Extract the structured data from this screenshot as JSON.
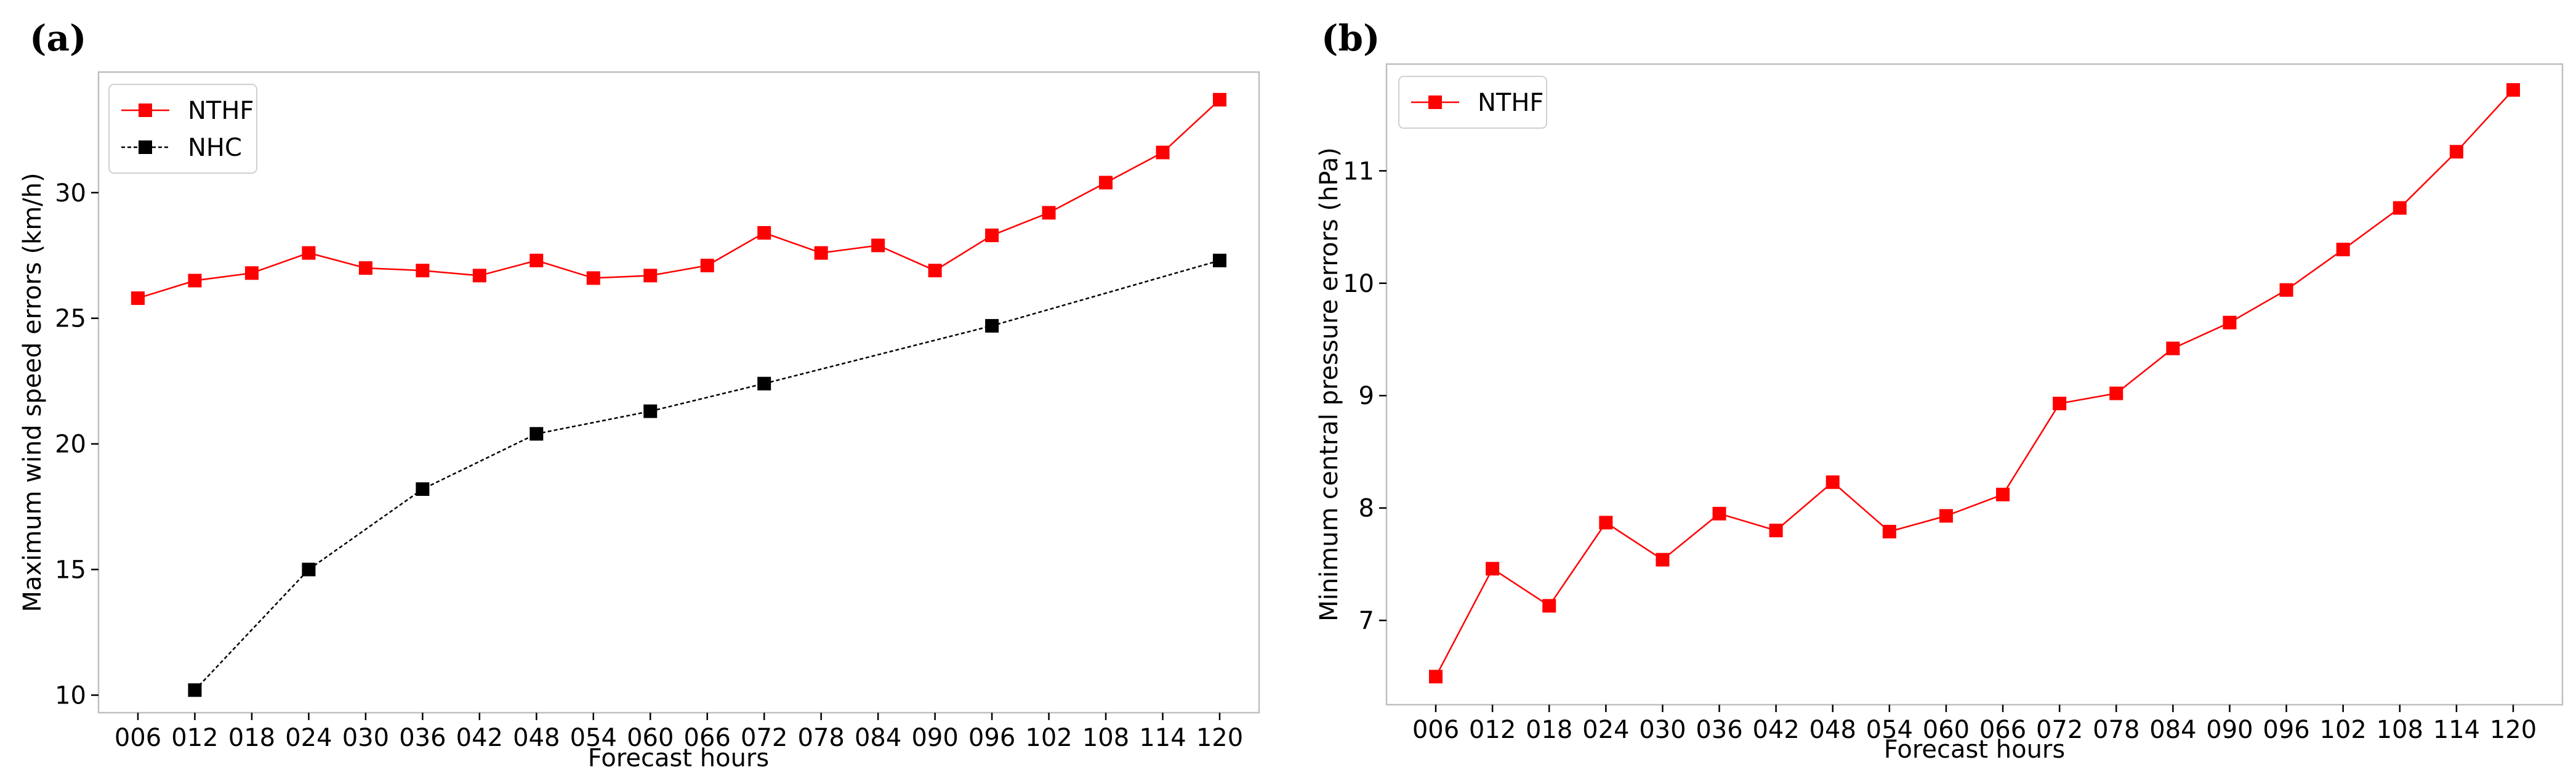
{
  "chart_data": [
    {
      "panel": "(a)",
      "type": "line",
      "title": "",
      "xlabel": "Forecast hours",
      "ylabel": "Maximum wind speed errors (km/h)",
      "categories": [
        "006",
        "012",
        "018",
        "024",
        "030",
        "036",
        "042",
        "048",
        "054",
        "060",
        "066",
        "072",
        "078",
        "084",
        "090",
        "096",
        "102",
        "108",
        "114",
        "120"
      ],
      "ylim": [
        9.3,
        34.8
      ],
      "yticks": [
        10,
        15,
        20,
        25,
        30
      ],
      "grid": false,
      "legend_position": "top-left",
      "series": [
        {
          "name": "NTHF",
          "color": "#ff0000",
          "linestyle": "solid",
          "marker": "square",
          "values": [
            25.8,
            26.5,
            26.8,
            27.6,
            27.0,
            26.9,
            26.7,
            27.3,
            26.6,
            26.7,
            27.1,
            28.4,
            27.6,
            27.9,
            26.9,
            28.3,
            29.2,
            30.4,
            31.6,
            33.7
          ]
        },
        {
          "name": "NHC",
          "color": "#000000",
          "linestyle": "dashed",
          "marker": "square",
          "values": [
            null,
            10.2,
            null,
            15.0,
            null,
            18.2,
            null,
            20.4,
            null,
            21.3,
            null,
            22.4,
            null,
            null,
            null,
            24.7,
            null,
            null,
            null,
            27.3
          ]
        }
      ]
    },
    {
      "panel": "(b)",
      "type": "line",
      "title": "",
      "xlabel": "Forecast hours",
      "ylabel": "Minimum central pressure errors (hPa)",
      "categories": [
        "006",
        "012",
        "018",
        "024",
        "030",
        "036",
        "042",
        "048",
        "054",
        "060",
        "066",
        "072",
        "078",
        "084",
        "090",
        "096",
        "102",
        "108",
        "114",
        "120"
      ],
      "ylim": [
        6.25,
        11.95
      ],
      "yticks": [
        7,
        8,
        9,
        10,
        11
      ],
      "grid": false,
      "legend_position": "top-left",
      "series": [
        {
          "name": "NTHF",
          "color": "#ff0000",
          "linestyle": "solid",
          "marker": "square",
          "values": [
            6.5,
            7.46,
            7.13,
            7.87,
            7.54,
            7.95,
            7.8,
            8.23,
            7.79,
            7.93,
            8.12,
            8.93,
            9.02,
            9.42,
            9.65,
            9.94,
            10.3,
            10.67,
            11.17,
            11.72
          ]
        }
      ]
    }
  ]
}
